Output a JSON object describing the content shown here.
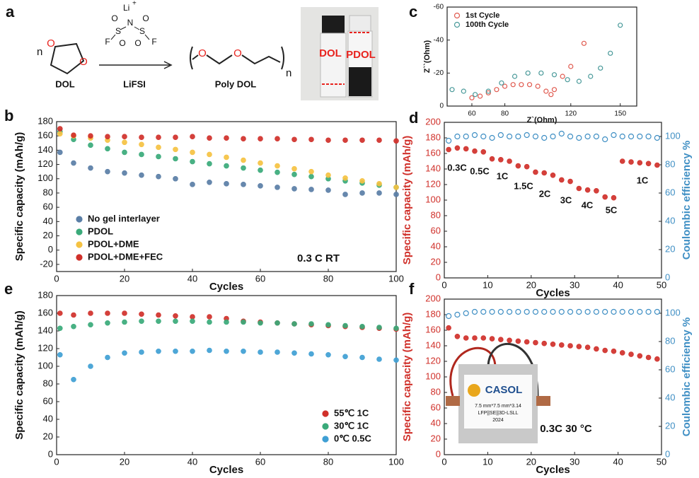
{
  "scheme": {
    "panel": "a",
    "reactant_atoms": [
      "O",
      "O"
    ],
    "n_reactant": "n",
    "reactant_label": "DOL",
    "reagent_atoms": [
      "Li",
      "+",
      "N",
      "F",
      "S",
      "O",
      "O",
      "S",
      "O",
      "O",
      "F"
    ],
    "reagent_label": "LiFSI",
    "product_atoms": [
      "O",
      "O"
    ],
    "n_product": "n",
    "product_label": "Poly DOL",
    "photo_labels": [
      "DOL",
      "PDOL"
    ]
  },
  "photo_f": {
    "brand": "CASOL",
    "size": "7.5 mm*7.5 mm*3.14",
    "cell": "LFP||SE||3D-LSLL",
    "year": "2024"
  },
  "chart_data": [
    {
      "type": "scatter",
      "panel": "b",
      "xlabel": "Cycles",
      "ylabel": "Specific capacity (mAh/g)",
      "xlim": [
        0,
        100
      ],
      "xticks": [
        0,
        20,
        40,
        60,
        80,
        100
      ],
      "ylim": [
        -30,
        180
      ],
      "yticks": [
        -20,
        0,
        20,
        40,
        60,
        80,
        100,
        120,
        140,
        160,
        180
      ],
      "legend": "lower left",
      "annotation": "0.3 C   RT",
      "x": [
        1,
        5,
        10,
        15,
        20,
        25,
        30,
        35,
        40,
        45,
        50,
        55,
        60,
        65,
        70,
        75,
        80,
        85,
        90,
        95,
        100
      ],
      "series": [
        {
          "name": "No gel interlayer",
          "color": "#5a7ea6",
          "values": [
            137,
            122,
            115,
            110,
            108,
            105,
            103,
            100,
            92,
            95,
            93,
            92,
            90,
            88,
            86,
            85,
            84,
            78,
            80,
            80,
            78
          ]
        },
        {
          "name": "PDOL",
          "color": "#3aaa7a",
          "values": [
            166,
            155,
            147,
            142,
            137,
            134,
            131,
            128,
            124,
            121,
            118,
            115,
            112,
            109,
            106,
            103,
            100,
            97,
            94,
            91,
            88
          ]
        },
        {
          "name": "PDOL+DME",
          "color": "#f5c242",
          "values": [
            163,
            160,
            157,
            154,
            151,
            148,
            144,
            141,
            137,
            134,
            130,
            126,
            122,
            118,
            114,
            110,
            105,
            101,
            97,
            93,
            88
          ]
        },
        {
          "name": "PDOL+DME+FEC",
          "color": "#d0302a",
          "values": [
            170,
            161,
            160,
            159,
            159,
            158,
            158,
            158,
            159,
            157,
            157,
            156,
            156,
            156,
            155,
            155,
            154,
            154,
            154,
            154,
            153
          ]
        }
      ]
    },
    {
      "type": "scatter",
      "panel": "c",
      "xlabel": "Z`(Ohm)",
      "ylabel": "Z``(Ohm)",
      "xlim": [
        45,
        160
      ],
      "xticks": [
        60,
        80,
        120,
        150
      ],
      "ylim": [
        0,
        -60
      ],
      "yticks": [
        -60,
        -40,
        -20,
        0
      ],
      "legend": "upper left",
      "series": [
        {
          "name": "1st Cycle",
          "color": "#e05a4f",
          "marker": "hollow",
          "x": [
            60,
            65,
            70,
            75,
            80,
            85,
            90,
            95,
            100,
            105,
            108,
            110,
            115,
            120,
            128
          ],
          "values": [
            -5,
            -6,
            -8,
            -10,
            -12,
            -13,
            -13,
            -13,
            -12,
            -9,
            -7,
            -10,
            -18,
            -24,
            -38
          ]
        },
        {
          "name": "100th Cycle",
          "color": "#4a9a9a",
          "marker": "hollow",
          "x": [
            48,
            55,
            62,
            70,
            78,
            86,
            94,
            102,
            110,
            118,
            125,
            132,
            138,
            144,
            150
          ],
          "values": [
            -10,
            -9,
            -7,
            -9,
            -14,
            -18,
            -20,
            -20,
            -19,
            -16,
            -15,
            -18,
            -23,
            -32,
            -49
          ]
        }
      ]
    },
    {
      "type": "scatter",
      "panel": "d",
      "xlabel": "Cycles",
      "ylabel": "Specific capacity (mAh/g)",
      "y2label": "Coulombic efficiency %",
      "xlim": [
        0,
        50
      ],
      "xticks": [
        0,
        10,
        20,
        30,
        40,
        50
      ],
      "ylim": [
        0,
        200
      ],
      "yticks": [
        0,
        20,
        40,
        60,
        80,
        100,
        120,
        140,
        160,
        180,
        200
      ],
      "y2lim": [
        0,
        110
      ],
      "y2ticks": [
        0,
        20,
        40,
        60,
        80,
        100
      ],
      "annotations": [
        "0.3C",
        "0.5C",
        "1C",
        "1.5C",
        "2C",
        "3C",
        "4C",
        "5C",
        "1C"
      ],
      "x": [
        1,
        3,
        5,
        7,
        9,
        11,
        13,
        15,
        17,
        19,
        21,
        23,
        25,
        27,
        29,
        31,
        33,
        35,
        37,
        39,
        41,
        43,
        45,
        47,
        49
      ],
      "series": [
        {
          "color": "#d0302a",
          "values": [
            165,
            167,
            166,
            163,
            162,
            153,
            152,
            150,
            144,
            143,
            136,
            135,
            132,
            126,
            124,
            115,
            113,
            112,
            104,
            103,
            150,
            149,
            148,
            147,
            145
          ]
        },
        {
          "color": "#3f8fc4",
          "marker": "hollow",
          "axis": "y2",
          "values": [
            97,
            100,
            100,
            101,
            100,
            99,
            101,
            100,
            100,
            101,
            100,
            99,
            100,
            102,
            100,
            99,
            100,
            100,
            98,
            101,
            100,
            100,
            100,
            100,
            99
          ]
        }
      ]
    },
    {
      "type": "scatter",
      "panel": "e",
      "xlabel": "Cycles",
      "ylabel": "Specific capacity (mAh/g)",
      "xlim": [
        0,
        100
      ],
      "xticks": [
        0,
        20,
        40,
        60,
        80,
        100
      ],
      "ylim": [
        0,
        180
      ],
      "yticks": [
        0,
        20,
        40,
        60,
        80,
        100,
        120,
        140,
        160,
        180
      ],
      "legend": "lower right",
      "x": [
        1,
        5,
        10,
        15,
        20,
        25,
        30,
        35,
        40,
        45,
        50,
        55,
        60,
        65,
        70,
        75,
        80,
        85,
        90,
        95,
        100
      ],
      "series": [
        {
          "name": "55℃ 1C",
          "color": "#d0302a",
          "values": [
            160,
            158,
            160,
            160,
            160,
            159,
            158,
            157,
            156,
            156,
            154,
            151,
            150,
            149,
            148,
            147,
            146,
            145,
            144,
            143,
            142
          ]
        },
        {
          "name": "30℃ 1C",
          "color": "#3aaa7a",
          "values": [
            143,
            145,
            147,
            149,
            150,
            151,
            151,
            151,
            151,
            150,
            150,
            150,
            149,
            149,
            148,
            148,
            147,
            146,
            145,
            144,
            143
          ]
        },
        {
          "name": "0℃ 0.5C",
          "color": "#3f9fd4",
          "values": [
            113,
            85,
            100,
            110,
            115,
            116,
            117,
            117,
            117,
            118,
            117,
            117,
            116,
            116,
            115,
            114,
            113,
            111,
            110,
            108,
            107
          ]
        }
      ]
    },
    {
      "type": "scatter",
      "panel": "f",
      "xlabel": "Cycles",
      "ylabel": "Specific capacity (mAh/g)",
      "y2label": "Coulombic efficiency %",
      "xlim": [
        0,
        50
      ],
      "xticks": [
        0,
        10,
        20,
        30,
        40,
        50
      ],
      "ylim": [
        0,
        200
      ],
      "yticks": [
        0,
        20,
        40,
        60,
        80,
        100,
        120,
        140,
        160,
        180,
        200
      ],
      "y2lim": [
        0,
        110
      ],
      "y2ticks": [
        0,
        20,
        40,
        60,
        80,
        100
      ],
      "annotation": "0.3C  30 °C",
      "x": [
        1,
        3,
        5,
        7,
        9,
        11,
        13,
        15,
        17,
        19,
        21,
        23,
        25,
        27,
        29,
        31,
        33,
        35,
        37,
        39,
        41,
        43,
        45,
        47,
        49
      ],
      "series": [
        {
          "color": "#d0302a",
          "values": [
            163,
            152,
            150,
            150,
            150,
            149,
            148,
            147,
            146,
            145,
            144,
            143,
            142,
            141,
            140,
            139,
            138,
            136,
            134,
            133,
            131,
            129,
            127,
            125,
            123
          ]
        },
        {
          "color": "#3f8fc4",
          "marker": "hollow",
          "axis": "y2",
          "values": [
            98,
            99,
            100,
            101,
            101,
            101,
            101,
            101,
            101,
            101,
            101,
            101,
            101,
            101,
            101,
            101,
            101,
            101,
            101,
            101,
            101,
            101,
            101,
            101,
            101
          ]
        }
      ]
    }
  ]
}
